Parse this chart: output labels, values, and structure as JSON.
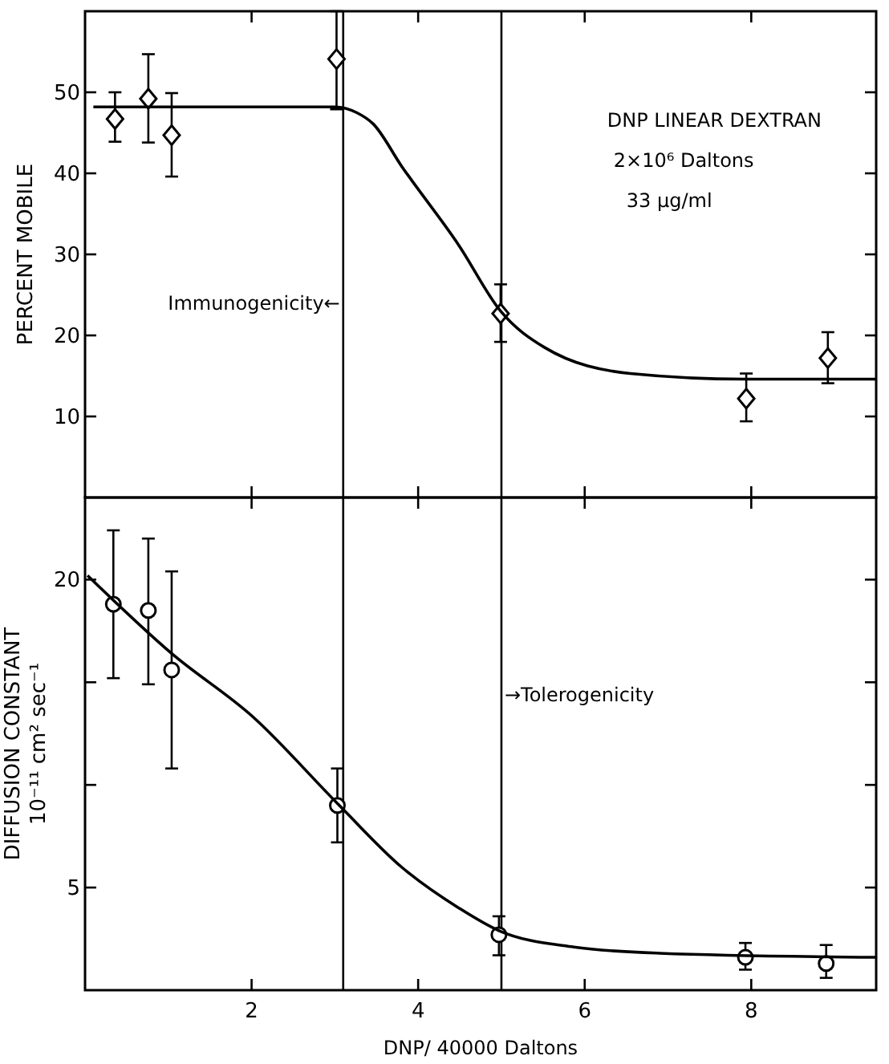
{
  "chart_data": [
    {
      "type": "scatter",
      "ylabel": "PERCENT MOBILE",
      "xlim": [
        0,
        9.5
      ],
      "ylim": [
        0,
        60
      ],
      "xticks": [
        {
          "value": 2,
          "label": null
        },
        {
          "value": 4,
          "label": null
        },
        {
          "value": 6,
          "label": null
        },
        {
          "value": 8,
          "label": null
        }
      ],
      "yticks": [
        10,
        20,
        30,
        40,
        50
      ],
      "tick_labels": "y",
      "grid": false,
      "annotations": [
        "DNP LINEAR DEXTRAN",
        "2×10⁶ Daltons",
        "33 µg/ml"
      ],
      "ref_lines": [
        {
          "axis": "x",
          "value": 3.1,
          "label": "Immunogenicity←"
        },
        {
          "axis": "x",
          "value": 5,
          "label": null
        }
      ],
      "series": [
        {
          "color": "#000000",
          "marker": "diamond",
          "x": [
            0.36,
            0.76,
            1.04,
            3.02,
            4.99,
            7.94,
            8.92
          ],
          "values": [
            46.7,
            49.2,
            44.7,
            54.1,
            22.7,
            12.2,
            17.2
          ],
          "errors": [
            [
              43.9,
              50
            ],
            [
              43.8,
              54.7
            ],
            [
              39.6,
              49.9
            ],
            [
              47.9,
              60
            ],
            [
              19.2,
              26.3
            ],
            [
              9.4,
              15.3
            ],
            [
              14.1,
              20.4
            ]
          ]
        },
        {
          "type": "line",
          "color": "#000000",
          "marker": "none",
          "line_style": "solid",
          "x": [
            0.1,
            1,
            2,
            3,
            3.26,
            3.46,
            3.8,
            4.49,
            4.99,
            5.52,
            6.55,
            7.93,
            9.5
          ],
          "values": [
            48.2,
            48.2,
            48.2,
            48.2,
            47.5,
            46.1,
            40.9,
            31.1,
            23,
            18.5,
            15.3,
            14.6,
            14.6
          ]
        }
      ]
    },
    {
      "type": "scatter",
      "ylabel": "DIFFUSION CONSTANT\n10⁻¹¹ cm² sec⁻¹",
      "xlabel": "DNP/ 40000 Daltons",
      "xlim": [
        0,
        9.5
      ],
      "ylim": [
        0,
        24
      ],
      "xticks": [
        2,
        4,
        6,
        8
      ],
      "yticks": [
        5,
        {
          "value": 10,
          "label": null
        },
        {
          "value": 15,
          "label": null
        },
        20
      ],
      "grid": false,
      "ref_lines": [
        {
          "axis": "x",
          "value": 3.1,
          "label": null
        },
        {
          "axis": "x",
          "value": 5,
          "label": "→Tolerogenicity"
        }
      ],
      "series": [
        {
          "color": "#000000",
          "marker": "circle",
          "x": [
            0.34,
            0.76,
            1.04,
            3.03,
            4.97,
            7.93,
            8.9
          ],
          "values": [
            18.8,
            18.5,
            15.6,
            9,
            2.7,
            1.6,
            1.3
          ],
          "errors": [
            [
              15.2,
              22.4
            ],
            [
              14.9,
              22
            ],
            [
              10.8,
              20.4
            ],
            [
              7.2,
              10.8
            ],
            [
              1.7,
              3.6
            ],
            [
              1,
              2.3
            ],
            [
              0.6,
              2.2
            ]
          ]
        },
        {
          "type": "line",
          "color": "#000000",
          "marker": "none",
          "line_style": "solid",
          "x": [
            0.03,
            1.04,
            2.02,
            3.03,
            3.8,
            4.49,
            4.97,
            5.87,
            6.9,
            9.5
          ],
          "values": [
            20.2,
            16.4,
            13.3,
            9.1,
            6,
            4,
            2.9,
            2.1,
            1.8,
            1.6
          ]
        }
      ]
    }
  ]
}
